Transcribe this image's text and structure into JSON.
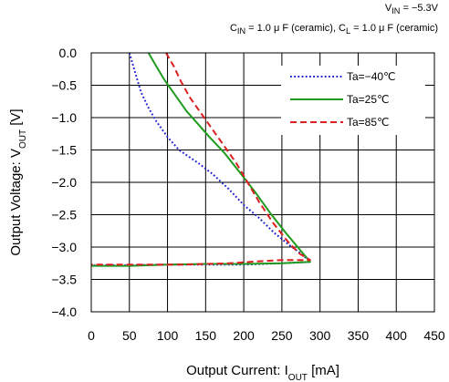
{
  "conditions": {
    "line1": "V<sub>IN</sub> = −5.3V",
    "line2": "C<sub>IN</sub> = 1.0 μ F (ceramic), C<sub>L</sub> = 1.0 μ F (ceramic)"
  },
  "chart_data": {
    "type": "line",
    "title": "",
    "xlabel": "Output Current: I_OUT [mA]",
    "ylabel": "Output Voltage: V_OUT [V]",
    "xlim": [
      0,
      450
    ],
    "ylim": [
      -4.0,
      0.0
    ],
    "x_ticks": [
      "0",
      "50",
      "100",
      "150",
      "200",
      "250",
      "300",
      "350",
      "400",
      "450"
    ],
    "y_ticks": [
      "0.0",
      "−0.5",
      "−1.0",
      "−1.5",
      "−2.0",
      "−2.5",
      "−3.0",
      "−3.5",
      "−4.0"
    ],
    "grid": true,
    "legend_position": "top-right",
    "series": [
      {
        "name": "Ta=−40℃",
        "color": "#1f1fd0",
        "style": "dotted",
        "points": [
          [
            50,
            0.0
          ],
          [
            55,
            -0.2
          ],
          [
            60,
            -0.4
          ],
          [
            65,
            -0.6
          ],
          [
            75,
            -0.85
          ],
          [
            85,
            -1.05
          ],
          [
            100,
            -1.3
          ],
          [
            115,
            -1.5
          ],
          [
            125,
            -1.58
          ],
          [
            140,
            -1.7
          ],
          [
            160,
            -1.88
          ],
          [
            180,
            -2.1
          ],
          [
            200,
            -2.35
          ],
          [
            220,
            -2.55
          ],
          [
            240,
            -2.78
          ],
          [
            260,
            -2.97
          ],
          [
            275,
            -3.1
          ],
          [
            287,
            -3.23
          ],
          [
            250,
            -3.25
          ],
          [
            200,
            -3.27
          ],
          [
            150,
            -3.27
          ],
          [
            100,
            -3.27
          ],
          [
            50,
            -3.28
          ],
          [
            0,
            -3.28
          ]
        ]
      },
      {
        "name": "Ta=25℃",
        "color": "#1e9a1e",
        "style": "solid",
        "points": [
          [
            75,
            0.0
          ],
          [
            85,
            -0.2
          ],
          [
            95,
            -0.4
          ],
          [
            110,
            -0.65
          ],
          [
            125,
            -0.9
          ],
          [
            140,
            -1.1
          ],
          [
            155,
            -1.3
          ],
          [
            175,
            -1.55
          ],
          [
            195,
            -1.85
          ],
          [
            215,
            -2.15
          ],
          [
            235,
            -2.48
          ],
          [
            255,
            -2.78
          ],
          [
            272,
            -3.02
          ],
          [
            287,
            -3.23
          ],
          [
            250,
            -3.25
          ],
          [
            200,
            -3.26
          ],
          [
            150,
            -3.26
          ],
          [
            100,
            -3.27
          ],
          [
            50,
            -3.29
          ],
          [
            0,
            -3.29
          ]
        ]
      },
      {
        "name": "Ta=85℃",
        "color": "#dd1f1f",
        "style": "dashed",
        "points": [
          [
            98,
            0.0
          ],
          [
            108,
            -0.2
          ],
          [
            118,
            -0.45
          ],
          [
            130,
            -0.7
          ],
          [
            145,
            -0.95
          ],
          [
            160,
            -1.2
          ],
          [
            175,
            -1.45
          ],
          [
            190,
            -1.7
          ],
          [
            205,
            -2.0
          ],
          [
            220,
            -2.3
          ],
          [
            238,
            -2.62
          ],
          [
            258,
            -2.92
          ],
          [
            273,
            -3.1
          ],
          [
            287,
            -3.2
          ],
          [
            250,
            -3.2
          ],
          [
            220,
            -3.22
          ],
          [
            180,
            -3.25
          ],
          [
            150,
            -3.26
          ],
          [
            120,
            -3.27
          ],
          [
            60,
            -3.27
          ],
          [
            0,
            -3.27
          ]
        ]
      }
    ]
  }
}
